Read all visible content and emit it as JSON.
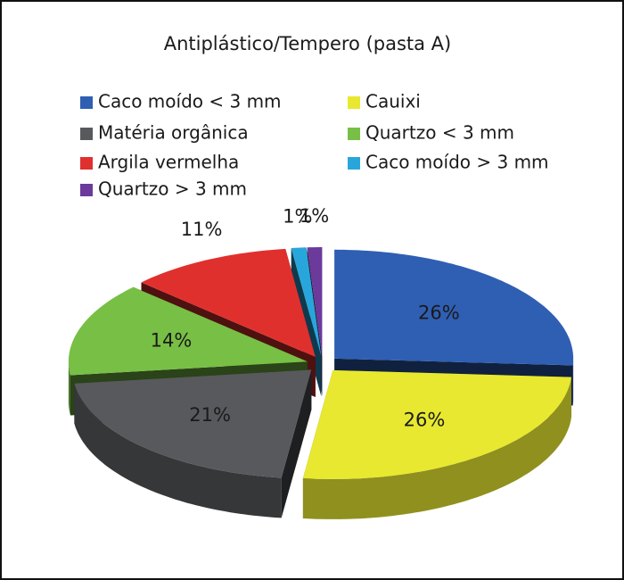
{
  "chart_data": {
    "type": "pie",
    "title": "Antiplástico/Tempero (pasta A)",
    "categories": [
      "Caco moído < 3 mm",
      "Cauixi",
      "Matéria orgânica",
      "Quartzo < 3 mm",
      "Argila vermelha",
      "Caco moído > 3 mm",
      "Quartzo > 3 mm"
    ],
    "values": [
      26,
      26,
      21,
      14,
      11,
      1,
      1
    ],
    "value_labels": [
      "26%",
      "26%",
      "21%",
      "14%",
      "11%",
      "1%",
      "1%"
    ],
    "colors": [
      "#2f5fb3",
      "#e8e830",
      "#57595c",
      "#78bf45",
      "#e0302e",
      "#28a6dc",
      "#6b3a9b"
    ]
  }
}
